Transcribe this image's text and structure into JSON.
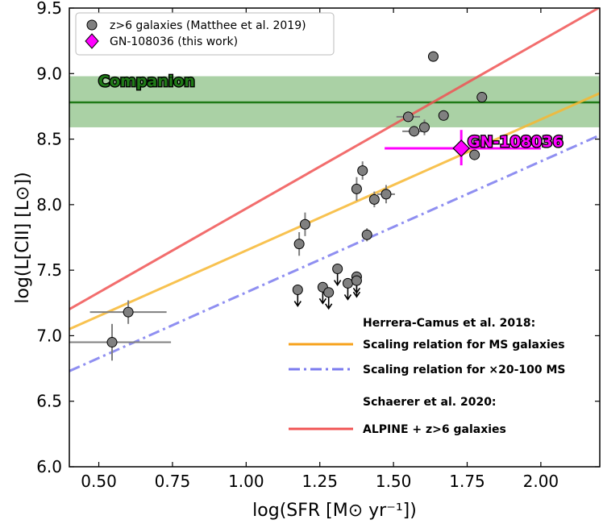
{
  "chart_data": {
    "type": "scatter",
    "xlabel": "log(SFR [M⊙ yr⁻¹])",
    "ylabel": "log(L[CII] [L⊙])",
    "xlim": [
      0.4,
      2.2
    ],
    "ylim": [
      6.0,
      9.5
    ],
    "x_ticks": [
      {
        "value": 0.5,
        "label": "0.50"
      },
      {
        "value": 0.75,
        "label": "0.75"
      },
      {
        "value": 1.0,
        "label": "1.00"
      },
      {
        "value": 1.25,
        "label": "1.25"
      },
      {
        "value": 1.5,
        "label": "1.50"
      },
      {
        "value": 1.75,
        "label": "1.75"
      },
      {
        "value": 2.0,
        "label": "2.00"
      }
    ],
    "y_ticks": [
      {
        "value": 6.0,
        "label": "6.0"
      },
      {
        "value": 6.5,
        "label": "6.5"
      },
      {
        "value": 7.0,
        "label": "7.0"
      },
      {
        "value": 7.5,
        "label": "7.5"
      },
      {
        "value": 8.0,
        "label": "8.0"
      },
      {
        "value": 8.5,
        "label": "8.5"
      },
      {
        "value": 9.0,
        "label": "9.0"
      },
      {
        "value": 9.5,
        "label": "9.5"
      }
    ],
    "legend": {
      "position": "top-left",
      "entries": [
        {
          "label": "z>6 galaxies (Matthee et al. 2019)",
          "marker": "circle",
          "color": "#808080"
        },
        {
          "label": "GN-108036 (this work)",
          "marker": "diamond",
          "color": "#ff00ff"
        }
      ]
    },
    "detections": [
      {
        "x": 0.545,
        "y": 6.95,
        "xerr": 0.2,
        "yerr": 0.14
      },
      {
        "x": 0.6,
        "y": 7.18,
        "xerr": 0.13,
        "yerr": 0.09
      },
      {
        "x": 1.18,
        "y": 7.7,
        "xerr": 0,
        "yerr": 0.09
      },
      {
        "x": 1.2,
        "y": 7.85,
        "xerr": 0,
        "yerr": 0.09
      },
      {
        "x": 1.375,
        "y": 8.12,
        "xerr": 0,
        "yerr": 0.09
      },
      {
        "x": 1.395,
        "y": 8.26,
        "xerr": 0,
        "yerr": 0.07
      },
      {
        "x": 1.41,
        "y": 7.77,
        "xerr": 0,
        "yerr": 0.05
      },
      {
        "x": 1.435,
        "y": 8.04,
        "xerr": 0,
        "yerr": 0.06
      },
      {
        "x": 1.475,
        "y": 8.08,
        "xerr": 0.03,
        "yerr": 0.07
      },
      {
        "x": 1.55,
        "y": 8.67,
        "xerr": 0.04,
        "yerr": 0
      },
      {
        "x": 1.57,
        "y": 8.56,
        "xerr": 0.04,
        "yerr": 0.04
      },
      {
        "x": 1.605,
        "y": 8.59,
        "xerr": 0,
        "yerr": 0.06
      },
      {
        "x": 1.635,
        "y": 9.13,
        "xerr": 0,
        "yerr": 0
      },
      {
        "x": 1.67,
        "y": 8.68,
        "xerr": 0,
        "yerr": 0
      },
      {
        "x": 1.775,
        "y": 8.38,
        "xerr": 0,
        "yerr": 0.04
      },
      {
        "x": 1.8,
        "y": 8.82,
        "xerr": 0,
        "yerr": 0
      }
    ],
    "upper_limits": [
      {
        "x": 1.175,
        "y": 7.35
      },
      {
        "x": 1.26,
        "y": 7.37
      },
      {
        "x": 1.28,
        "y": 7.33
      },
      {
        "x": 1.31,
        "y": 7.51
      },
      {
        "x": 1.345,
        "y": 7.4
      },
      {
        "x": 1.375,
        "y": 7.45
      },
      {
        "x": 1.375,
        "y": 7.42
      }
    ],
    "target": {
      "name": "GN-108036",
      "x": 1.73,
      "y": 8.43,
      "x_low": 1.47,
      "x_high": 2.0,
      "y_low": 8.3,
      "y_high": 8.57,
      "color": "#ff00ff"
    },
    "relations": [
      {
        "name": "Scaling relation for MS galaxies",
        "slope": 1.0,
        "intercept": 6.65,
        "color": "#f7b731",
        "style": "solid"
      },
      {
        "name": "Scaling relation for ×20-100 MS",
        "slope": 1.0,
        "intercept": 6.33,
        "color": "#7b7bef",
        "style": "dashdot"
      },
      {
        "name": "ALPINE + z>6 galaxies",
        "slope": 1.28,
        "intercept": 6.69,
        "color": "#f05454",
        "style": "solid"
      }
    ],
    "companion": {
      "label": "Companion",
      "value": 8.78,
      "band": [
        8.59,
        8.98
      ],
      "color": "#2a8c1f"
    },
    "annotations": {
      "herrera": "Herrera-Camus et al. 2018:",
      "ms": "Scaling relation for MS galaxies",
      "x20": "Scaling relation for ×20-100 MS",
      "schaerer": "Schaerer et al. 2020:",
      "alpine": "ALPINE + z>6 galaxies",
      "gn_label": "GN-108036"
    }
  }
}
